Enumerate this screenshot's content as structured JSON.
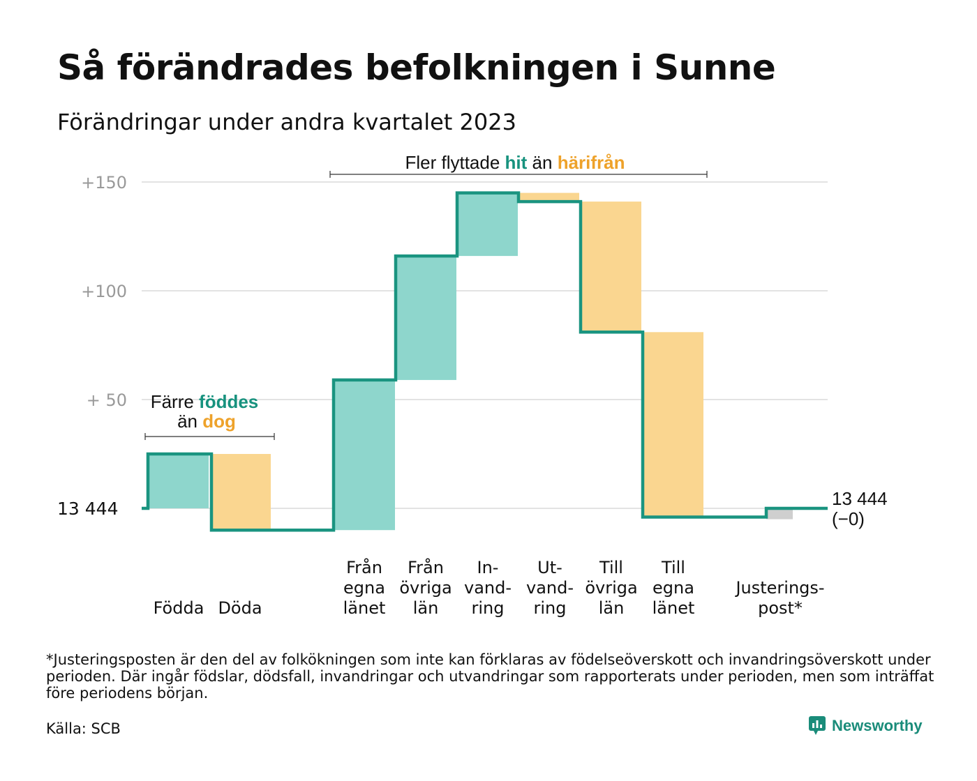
{
  "title": "Så förändrades befolkningen i Sunne",
  "subtitle": "Förändringar under andra kvartalet 2023",
  "colors": {
    "increase": "#8ed6cc",
    "decrease": "#fad690",
    "adjustment": "#cfcfcf",
    "line": "#1a9480",
    "teal_text": "#17927e",
    "orange_text": "#eea22a",
    "grid": "#e3e3e3",
    "tick_text": "#999999"
  },
  "chart_data": {
    "type": "waterfall",
    "baseline_label": "13  444",
    "end_label": "13 444",
    "end_change_label": "(−0)",
    "yticks": [
      {
        "value": 150,
        "label": "+150"
      },
      {
        "value": 100,
        "label": "+100"
      },
      {
        "value": 50,
        "label": "+  50"
      }
    ],
    "ylim": [
      -15,
      155
    ],
    "steps": [
      {
        "label_lines": [
          "Födda"
        ],
        "start": 0,
        "end": 25,
        "kind": "increase",
        "group": "natural"
      },
      {
        "label_lines": [
          "Döda"
        ],
        "start": 25,
        "end": -10,
        "kind": "decrease",
        "group": "natural"
      },
      {
        "label_lines": [
          "Från",
          "egna",
          "länet"
        ],
        "start": -10,
        "end": 59,
        "kind": "increase",
        "group": "migration"
      },
      {
        "label_lines": [
          "Från",
          "övriga",
          "län"
        ],
        "start": 59,
        "end": 116,
        "kind": "increase",
        "group": "migration"
      },
      {
        "label_lines": [
          "In-",
          "vand-",
          "ring"
        ],
        "start": 116,
        "end": 145,
        "kind": "increase",
        "group": "migration"
      },
      {
        "label_lines": [
          "Ut-",
          "vand-",
          "ring"
        ],
        "start": 145,
        "end": 141,
        "kind": "decrease",
        "group": "migration"
      },
      {
        "label_lines": [
          "Till",
          "övriga",
          "län"
        ],
        "start": 141,
        "end": 81,
        "kind": "decrease",
        "group": "migration"
      },
      {
        "label_lines": [
          "Till",
          "egna",
          "länet"
        ],
        "start": 81,
        "end": -4,
        "kind": "decrease",
        "group": "migration"
      },
      {
        "label_lines": [
          "Justerings-",
          "post*"
        ],
        "start": -4,
        "end": 0,
        "kind": "adjustment",
        "group": "adjustment"
      }
    ],
    "annotations": {
      "natural": {
        "line1_pre": "Färre ",
        "line1_hl": "föddes",
        "line2_pre": "än ",
        "line2_hl": "dog"
      },
      "migration": {
        "pre": "Fler flyttade ",
        "hl1": "hit",
        "mid": " än ",
        "hl2": "härifrån"
      }
    }
  },
  "footnote": "*Justeringsposten är den del av folkökningen som inte kan förklaras av födelseöverskott och invandringsöverskott under perioden. Där ingår födslar, dödsfall, invandringar och utvandringar som rapporterats under perioden, men som inträffat före periodens början.",
  "source": "Källa: SCB",
  "brand": {
    "name": "Newsworthy",
    "icon": "newsworthy-logo-icon"
  }
}
